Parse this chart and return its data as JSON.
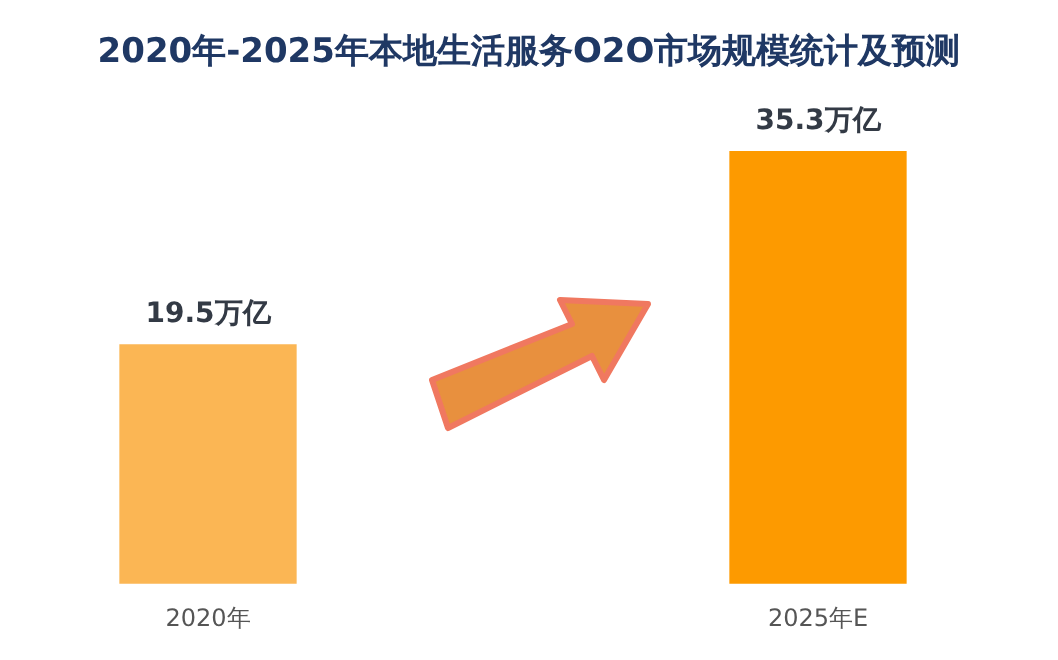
{
  "chart_data": {
    "type": "bar",
    "title": "2020年-2025年本地生活服务O2O市场规模统计及预测",
    "categories": [
      "2020年",
      "2025年E"
    ],
    "values": [
      19.5,
      35.3
    ],
    "value_labels": [
      "19.5万亿",
      "35.3万亿"
    ],
    "colors": [
      "#fbb654",
      "#fd9a00"
    ]
  }
}
